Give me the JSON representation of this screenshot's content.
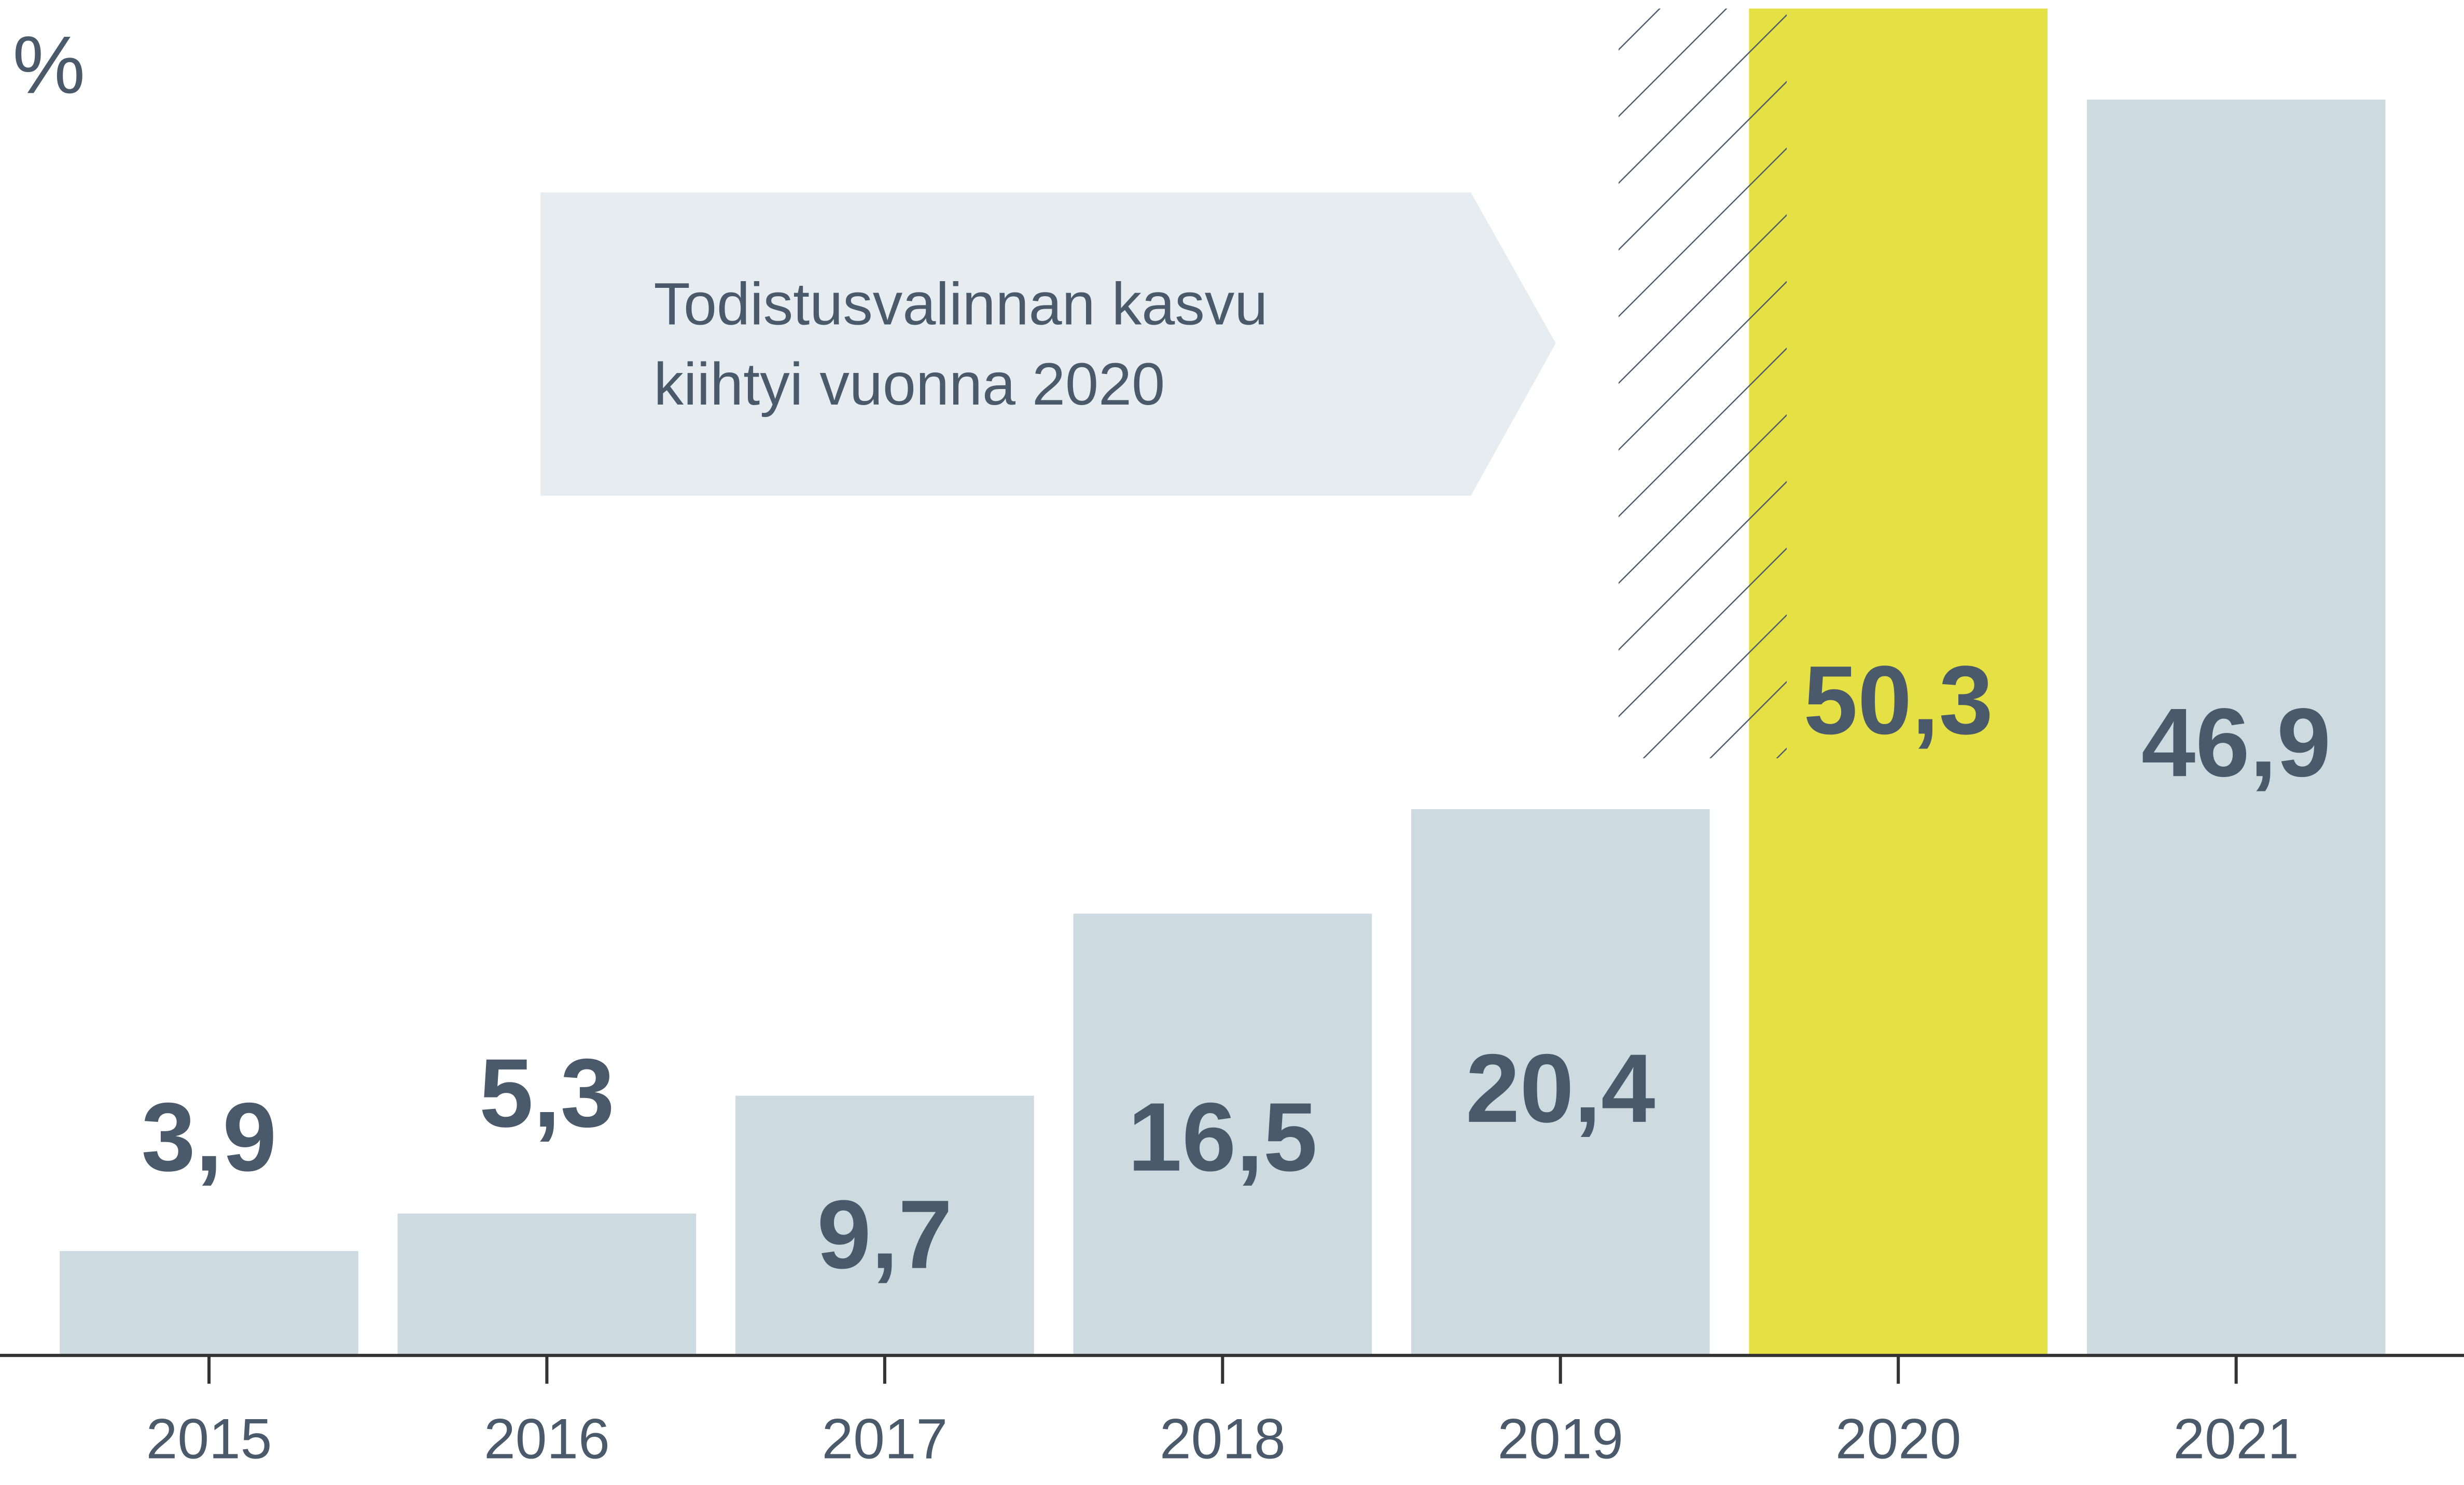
{
  "chart_data": {
    "type": "bar",
    "y_label": "%",
    "annotation": [
      "Todistusvalinnan kasvu",
      "kiihtyi vuonna 2020"
    ],
    "categories": [
      "2015",
      "2016",
      "2017",
      "2018",
      "2019",
      "2020",
      "2021"
    ],
    "values": [
      3.9,
      5.3,
      9.7,
      16.5,
      20.4,
      50.3,
      46.9
    ],
    "value_labels": [
      "3,9",
      "5,3",
      "9,7",
      "16,5",
      "20,4",
      "50,3",
      "46,9"
    ],
    "colors": [
      "#cddbe1",
      "#cddbe1",
      "#cddbe1",
      "#cddbe1",
      "#cddbe1",
      "#e5e043",
      "#cddbe1"
    ]
  }
}
